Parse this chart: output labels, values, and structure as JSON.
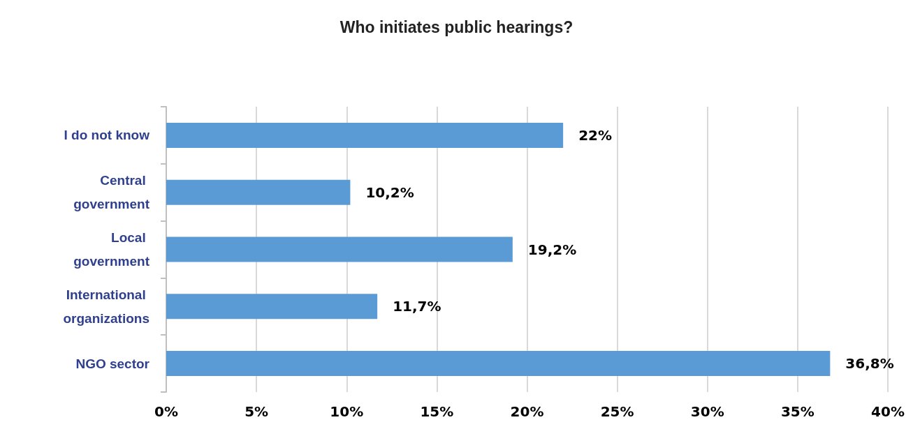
{
  "chart_data": {
    "type": "bar",
    "orientation": "horizontal",
    "title": "Who initiates public hearings?",
    "categories": [
      "I do not know",
      "Central government",
      "Local government",
      "International organizations",
      "NGO sector"
    ],
    "values": [
      22,
      10.2,
      19.2,
      11.7,
      36.8
    ],
    "value_labels": [
      "22%",
      "10,2%",
      "19,2%",
      "11,7%",
      "36,8%"
    ],
    "color": "#5b9bd5",
    "xlim": [
      0,
      40
    ],
    "xticks": [
      {
        "value": 0,
        "label": "0%"
      },
      {
        "value": 5,
        "label": "5%"
      },
      {
        "value": 10,
        "label": "10%"
      },
      {
        "value": 15,
        "label": "15%"
      },
      {
        "value": 20,
        "label": "20%"
      },
      {
        "value": 25,
        "label": "25%"
      },
      {
        "value": 30,
        "label": "30%"
      },
      {
        "value": 35,
        "label": "35%"
      },
      {
        "value": 40,
        "label": "40%"
      }
    ],
    "grid": "x"
  }
}
